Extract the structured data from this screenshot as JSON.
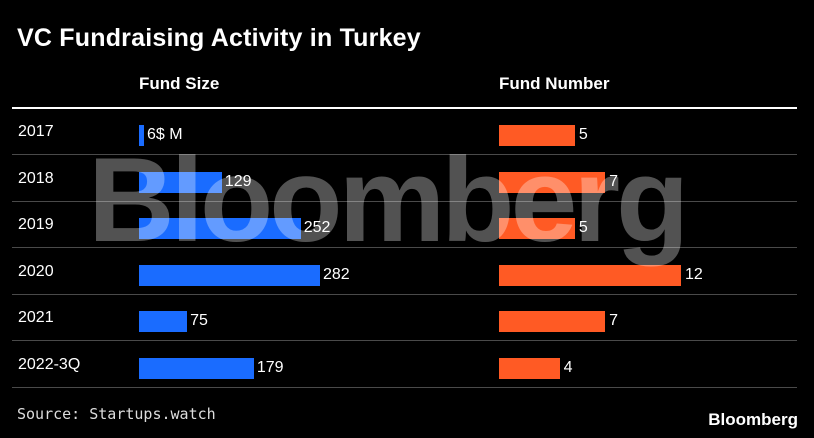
{
  "title": "VC Fundraising Activity in Turkey",
  "source": "Source: Startups.watch",
  "brand": "Bloomberg",
  "watermark": "Bloomberg",
  "colors": {
    "fund_size": "#1a6cff",
    "fund_number": "#ff5a24",
    "background": "#000000"
  },
  "chart_data": {
    "type": "bar",
    "title": "VC Fundraising Activity in Turkey",
    "categories": [
      "2017",
      "2018",
      "2019",
      "2020",
      "2021",
      "2022-3Q"
    ],
    "series": [
      {
        "name": "Fund Size",
        "values": [
          6,
          129,
          252,
          282,
          75,
          179
        ],
        "labels": [
          "6$ M",
          "129",
          "252",
          "282",
          "75",
          "179"
        ],
        "xlim": [
          0,
          282
        ]
      },
      {
        "name": "Fund Number",
        "values": [
          5,
          7,
          5,
          12,
          7,
          4
        ],
        "labels": [
          "5",
          "7",
          "5",
          "12",
          "7",
          "4"
        ],
        "xlim": [
          0,
          12
        ]
      }
    ]
  }
}
